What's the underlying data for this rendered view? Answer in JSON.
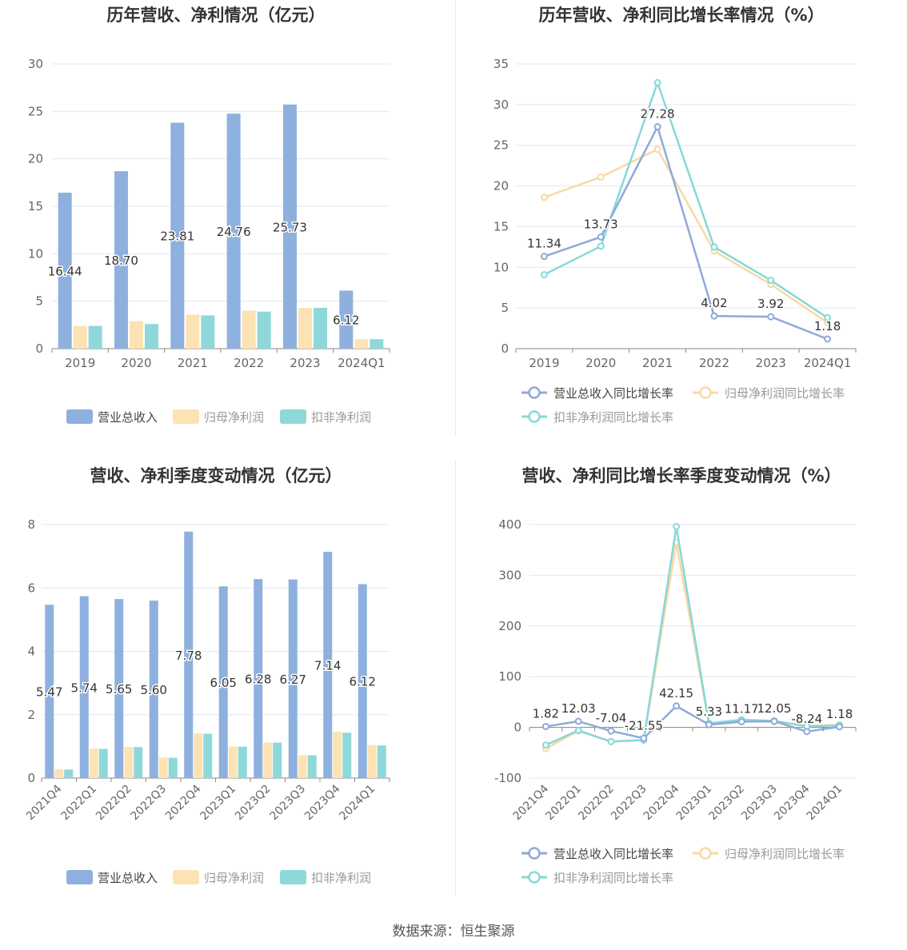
{
  "source_text": "数据来源：恒生聚源",
  "colors": {
    "revenue": "#8eb0de",
    "net_profit": "#fde3b3",
    "deducted_profit": "#8ed8da",
    "revenue_line": "#8eaad9",
    "net_line": "#f9d9a3",
    "deducted_line": "#86d8da"
  },
  "chart_data": [
    {
      "type": "bar",
      "title": "历年营收、净利情况（亿元）",
      "categories": [
        "2019",
        "2020",
        "2021",
        "2022",
        "2023",
        "2024Q1"
      ],
      "series": [
        {
          "name": "营业总收入",
          "values": [
            16.44,
            18.7,
            23.81,
            24.76,
            25.73,
            6.12
          ],
          "labels": [
            "16.44",
            "18.70",
            "23.81",
            "24.76",
            "25.73",
            "6.12"
          ]
        },
        {
          "name": "归母净利润",
          "values": [
            2.4,
            2.9,
            3.6,
            4.0,
            4.3,
            1.0
          ]
        },
        {
          "name": "扣非净利润",
          "values": [
            2.4,
            2.6,
            3.5,
            3.9,
            4.3,
            1.0
          ]
        }
      ],
      "ylim": [
        0,
        30
      ],
      "yticks": [
        0,
        5,
        10,
        15,
        20,
        25,
        30
      ],
      "legend": "bottom"
    },
    {
      "type": "line",
      "title": "历年营收、净利同比增长率情况（%）",
      "categories": [
        "2019",
        "2020",
        "2021",
        "2022",
        "2023",
        "2024Q1"
      ],
      "series": [
        {
          "name": "营业总收入同比增长率",
          "values": [
            11.34,
            13.73,
            27.28,
            4.02,
            3.92,
            1.18
          ],
          "labels": [
            "11.34",
            "13.73",
            "27.28",
            "4.02",
            "3.92",
            "1.18"
          ]
        },
        {
          "name": "归母净利润同比增长率",
          "values": [
            18.6,
            21.1,
            24.5,
            12.0,
            7.9,
            3.2
          ]
        },
        {
          "name": "扣非净利润同比增长率",
          "values": [
            9.1,
            12.6,
            32.7,
            12.5,
            8.4,
            3.8
          ]
        }
      ],
      "ylim": [
        0,
        35
      ],
      "yticks": [
        0,
        5,
        10,
        15,
        20,
        25,
        30,
        35
      ],
      "legend": "bottom"
    },
    {
      "type": "bar",
      "title": "营收、净利季度变动情况（亿元）",
      "categories": [
        "2021Q4",
        "2022Q1",
        "2022Q2",
        "2022Q3",
        "2022Q4",
        "2023Q1",
        "2023Q2",
        "2023Q3",
        "2023Q4",
        "2024Q1"
      ],
      "series": [
        {
          "name": "营业总收入",
          "values": [
            5.47,
            5.74,
            5.65,
            5.6,
            7.78,
            6.05,
            6.28,
            6.27,
            7.14,
            6.12
          ],
          "labels": [
            "5.47",
            "5.74",
            "5.65",
            "5.60",
            "7.78",
            "6.05",
            "6.28",
            "6.27",
            "7.14",
            "6.12"
          ]
        },
        {
          "name": "归母净利润",
          "values": [
            0.28,
            0.93,
            0.98,
            0.65,
            1.41,
            1.0,
            1.12,
            0.72,
            1.46,
            1.04
          ]
        },
        {
          "name": "扣非净利润",
          "values": [
            0.27,
            0.92,
            0.98,
            0.64,
            1.4,
            0.99,
            1.12,
            0.72,
            1.43,
            1.03
          ]
        }
      ],
      "ylim": [
        0,
        8
      ],
      "yticks": [
        0,
        2,
        4,
        6,
        8
      ],
      "legend": "bottom"
    },
    {
      "type": "line",
      "title": "营收、净利同比增长率季度变动情况（%）",
      "categories": [
        "2021Q4",
        "2022Q1",
        "2022Q2",
        "2022Q3",
        "2022Q4",
        "2023Q1",
        "2023Q2",
        "2023Q3",
        "2023Q4",
        "2024Q1"
      ],
      "series": [
        {
          "name": "营业总收入同比增长率",
          "values": [
            1.82,
            12.03,
            -7.04,
            -21.55,
            42.15,
            5.33,
            11.17,
            12.05,
            -8.24,
            1.18
          ],
          "labels": [
            "1.82",
            "12.03",
            "-7.04",
            "-21.55",
            "42.15",
            "5.33",
            "11.17",
            "12.05",
            "-8.24",
            "1.18"
          ]
        },
        {
          "name": "归母净利润同比增长率",
          "values": [
            -42,
            -7,
            -28,
            -25,
            365,
            6,
            13,
            11,
            3,
            5
          ]
        },
        {
          "name": "扣非净利润同比增长率",
          "values": [
            -35,
            -6,
            -28,
            -25,
            396,
            8,
            15,
            13,
            2,
            4
          ]
        }
      ],
      "ylim": [
        -100,
        400
      ],
      "yticks": [
        -100,
        0,
        100,
        200,
        300,
        400
      ],
      "legend": "bottom"
    }
  ]
}
